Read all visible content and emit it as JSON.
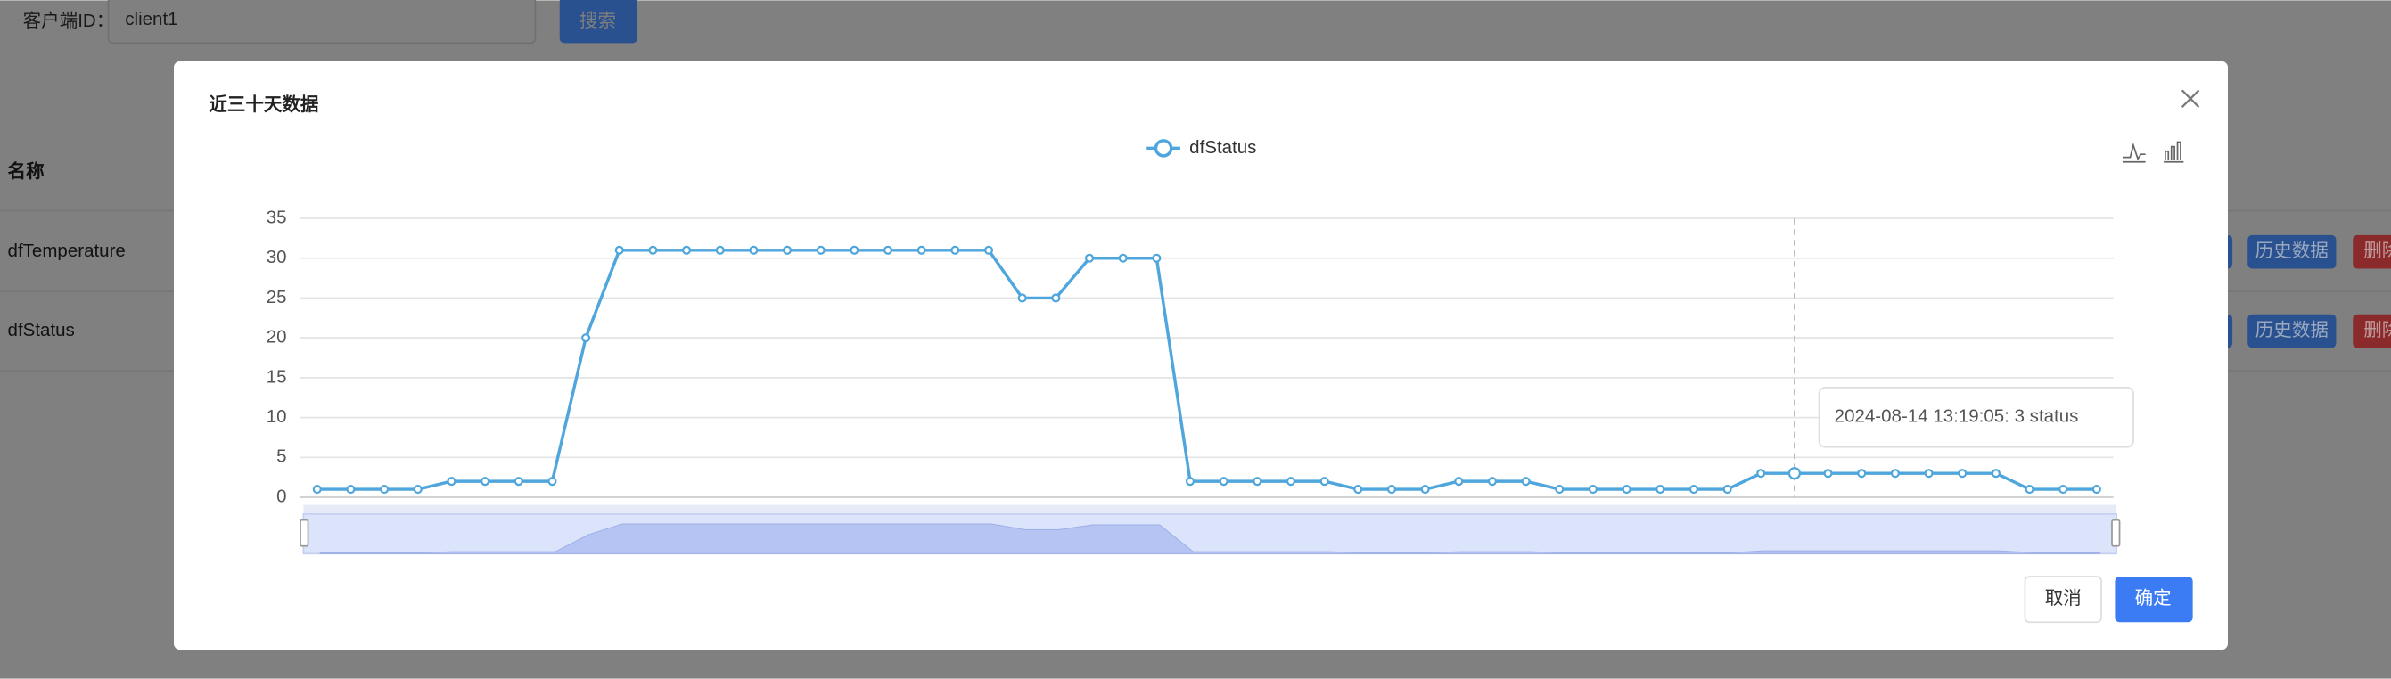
{
  "page": {
    "search_label": "客户端ID：",
    "search_input": "client1",
    "search_button": "搜索",
    "table": {
      "header": "名称",
      "rows": [
        {
          "name": "dfTemperature",
          "actions": [
            "历史数据",
            "删除"
          ]
        },
        {
          "name": "dfStatus",
          "actions": [
            "历史数据",
            "删除"
          ]
        }
      ]
    }
  },
  "modal": {
    "title": "近三十天数据",
    "cancel": "取消",
    "confirm": "确定"
  },
  "chart_data": {
    "type": "line",
    "grid": true,
    "categories": [
      null,
      null,
      null,
      null,
      null,
      null,
      null,
      null,
      null,
      null,
      null,
      null,
      null,
      null,
      null,
      null,
      null,
      null,
      null,
      null,
      null,
      null,
      null,
      null,
      null,
      null,
      null,
      null,
      null,
      null,
      null,
      null,
      null,
      null,
      null,
      null,
      null,
      null,
      null,
      null,
      null,
      null,
      null,
      null,
      null,
      null,
      null,
      null,
      null,
      null,
      null,
      null,
      null,
      null
    ],
    "series": [
      {
        "name": "dfStatus",
        "color": "#4fa6dc",
        "values": [
          1,
          1,
          1,
          1,
          2,
          2,
          2,
          2,
          20,
          31,
          31,
          31,
          31,
          31,
          31,
          31,
          31,
          31,
          31,
          31,
          31,
          25,
          25,
          30,
          30,
          30,
          2,
          2,
          2,
          2,
          2,
          1,
          1,
          1,
          2,
          2,
          2,
          1,
          1,
          1,
          1,
          1,
          1,
          3,
          3,
          3,
          3,
          3,
          3,
          3,
          3,
          1,
          1,
          1
        ]
      }
    ],
    "ylim": [
      0,
      35
    ],
    "yticks": [
      0,
      5,
      10,
      15,
      20,
      25,
      30,
      35
    ],
    "tooltip": "2024-08-14 13:19:05: 3 status"
  }
}
